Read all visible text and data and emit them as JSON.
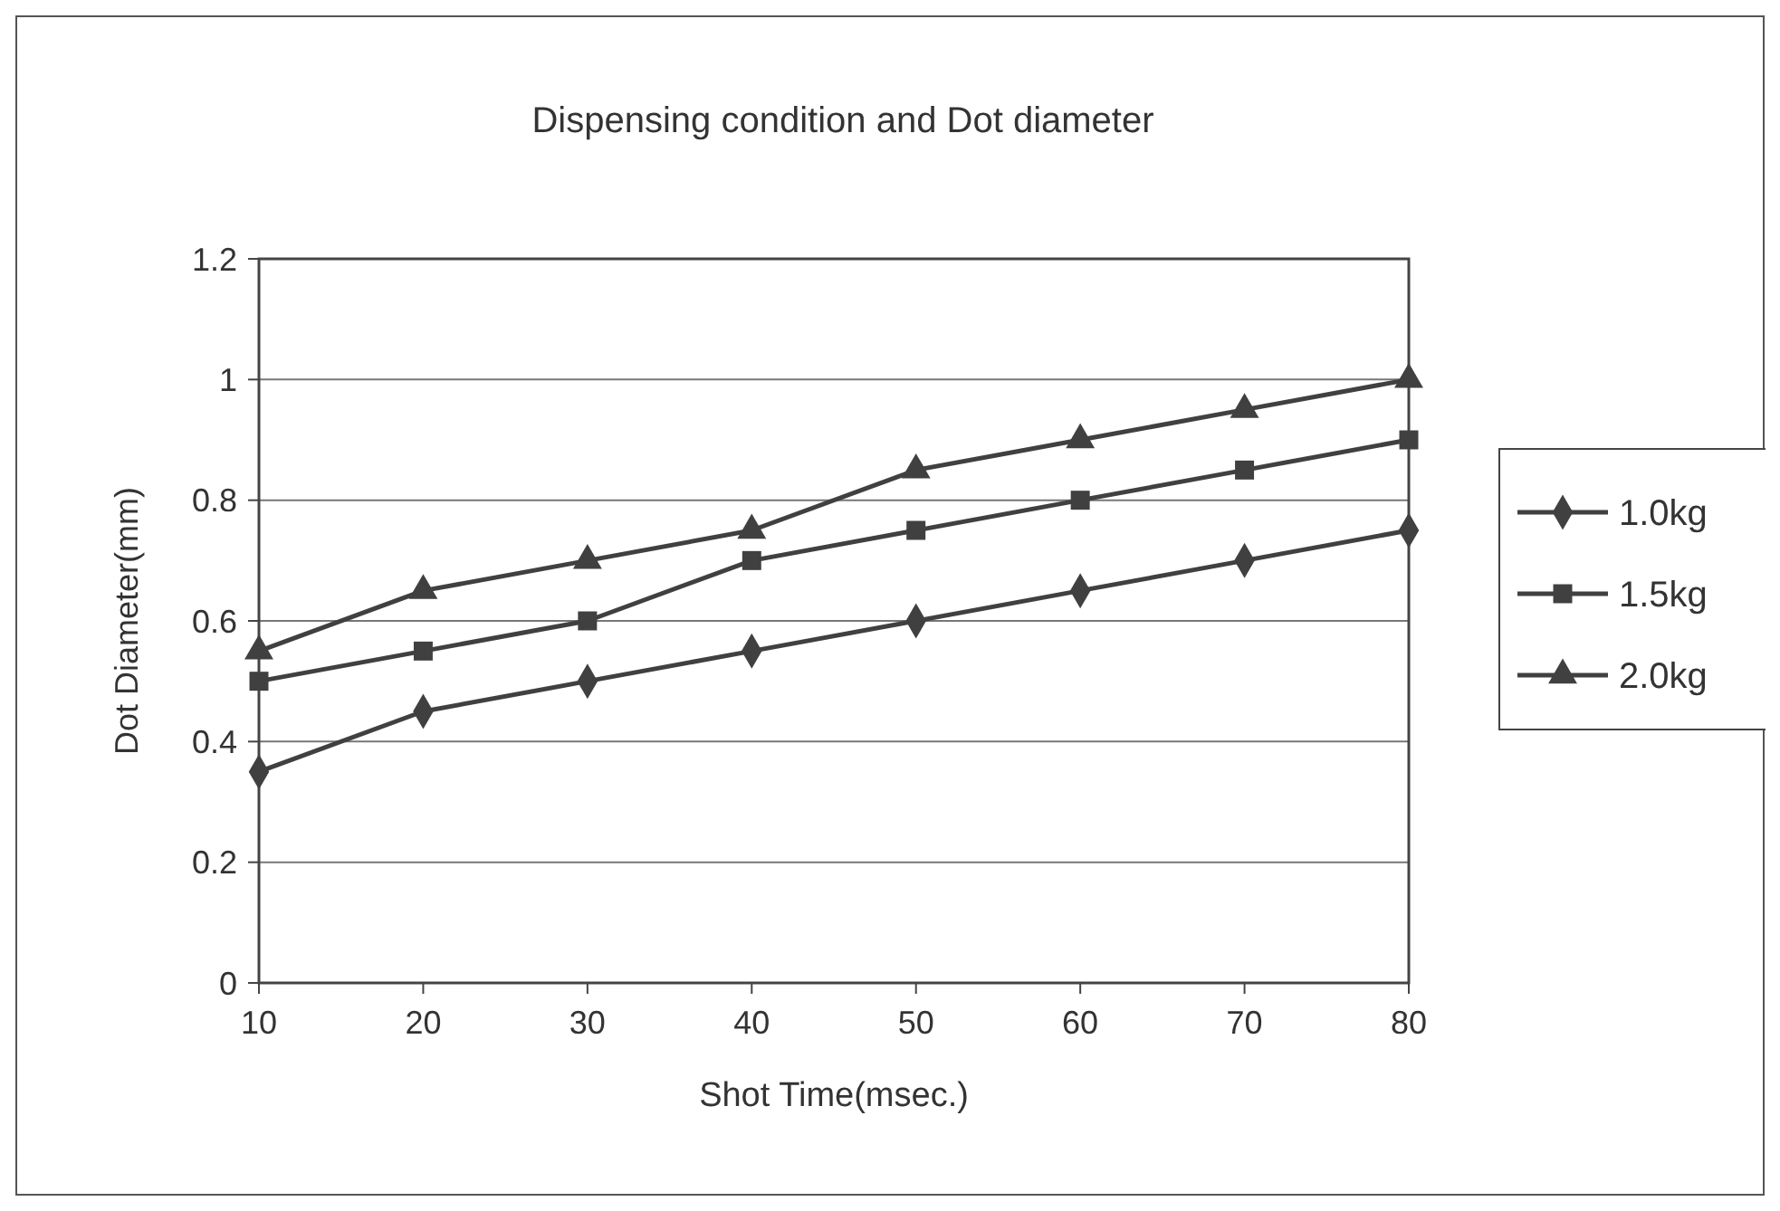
{
  "chart_data": {
    "type": "line",
    "title": "Dispensing condition and Dot diameter",
    "xlabel": "Shot Time(msec.)",
    "ylabel": "Dot Diameter(mm)",
    "x": [
      10,
      20,
      30,
      40,
      50,
      60,
      70,
      80
    ],
    "xlim": [
      10,
      80
    ],
    "xticks": [
      10,
      20,
      30,
      40,
      50,
      60,
      70,
      80
    ],
    "ylim": [
      0,
      1.2
    ],
    "yticks": [
      0,
      0.2,
      0.4,
      0.6,
      0.8,
      1,
      1.2
    ],
    "grid": "y",
    "legend": "right",
    "series": [
      {
        "name": "1.0kg",
        "color": "#404040",
        "marker": "diamond",
        "values": [
          0.35,
          0.45,
          0.5,
          0.55,
          0.6,
          0.65,
          0.7,
          0.75
        ]
      },
      {
        "name": "1.5kg",
        "color": "#404040",
        "marker": "square",
        "values": [
          0.5,
          0.55,
          0.6,
          0.7,
          0.75,
          0.8,
          0.85,
          0.9
        ]
      },
      {
        "name": "2.0kg",
        "color": "#404040",
        "marker": "triangle",
        "values": [
          0.55,
          0.65,
          0.7,
          0.75,
          0.85,
          0.9,
          0.95,
          1.0
        ]
      }
    ]
  }
}
